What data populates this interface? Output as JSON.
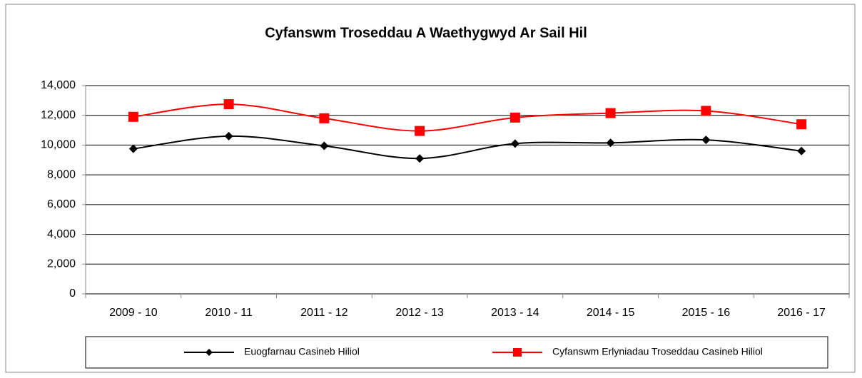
{
  "chart_data": {
    "type": "line",
    "title": "Cyfanswm Troseddau A Waethygwyd Ar Sail Hil",
    "categories": [
      "2009 - 10",
      "2010 - 11",
      "2011 - 12",
      "2012 - 13",
      "2013 - 14",
      "2014 - 15",
      "2015 - 16",
      "2016 - 17"
    ],
    "series": [
      {
        "name": "Euogfarnau Casineb Hiliol",
        "color": "#000000",
        "marker": "diamond",
        "values": [
          9750,
          10600,
          9950,
          9100,
          10100,
          10150,
          10350,
          9600
        ]
      },
      {
        "name": "Cyfanswm Erlyniadau Troseddau Casineb Hiliol",
        "color": "#ff0000",
        "marker": "square",
        "values": [
          11900,
          12750,
          11800,
          10950,
          11850,
          12150,
          12300,
          11400
        ]
      }
    ],
    "ylim": [
      0,
      14000
    ],
    "yticks": [
      0,
      {
        "value": 2000,
        "label": "2,000"
      },
      {
        "value": 4000,
        "label": "4,000"
      },
      {
        "value": 6000,
        "label": "6,000"
      },
      {
        "value": 8000,
        "label": "8,000"
      },
      {
        "value": 10000,
        "label": "10,000"
      },
      {
        "value": 12000,
        "label": "12,000"
      },
      {
        "value": 14000,
        "label": "14,000"
      }
    ],
    "grid": true,
    "smooth": true,
    "legend": "bottom"
  }
}
